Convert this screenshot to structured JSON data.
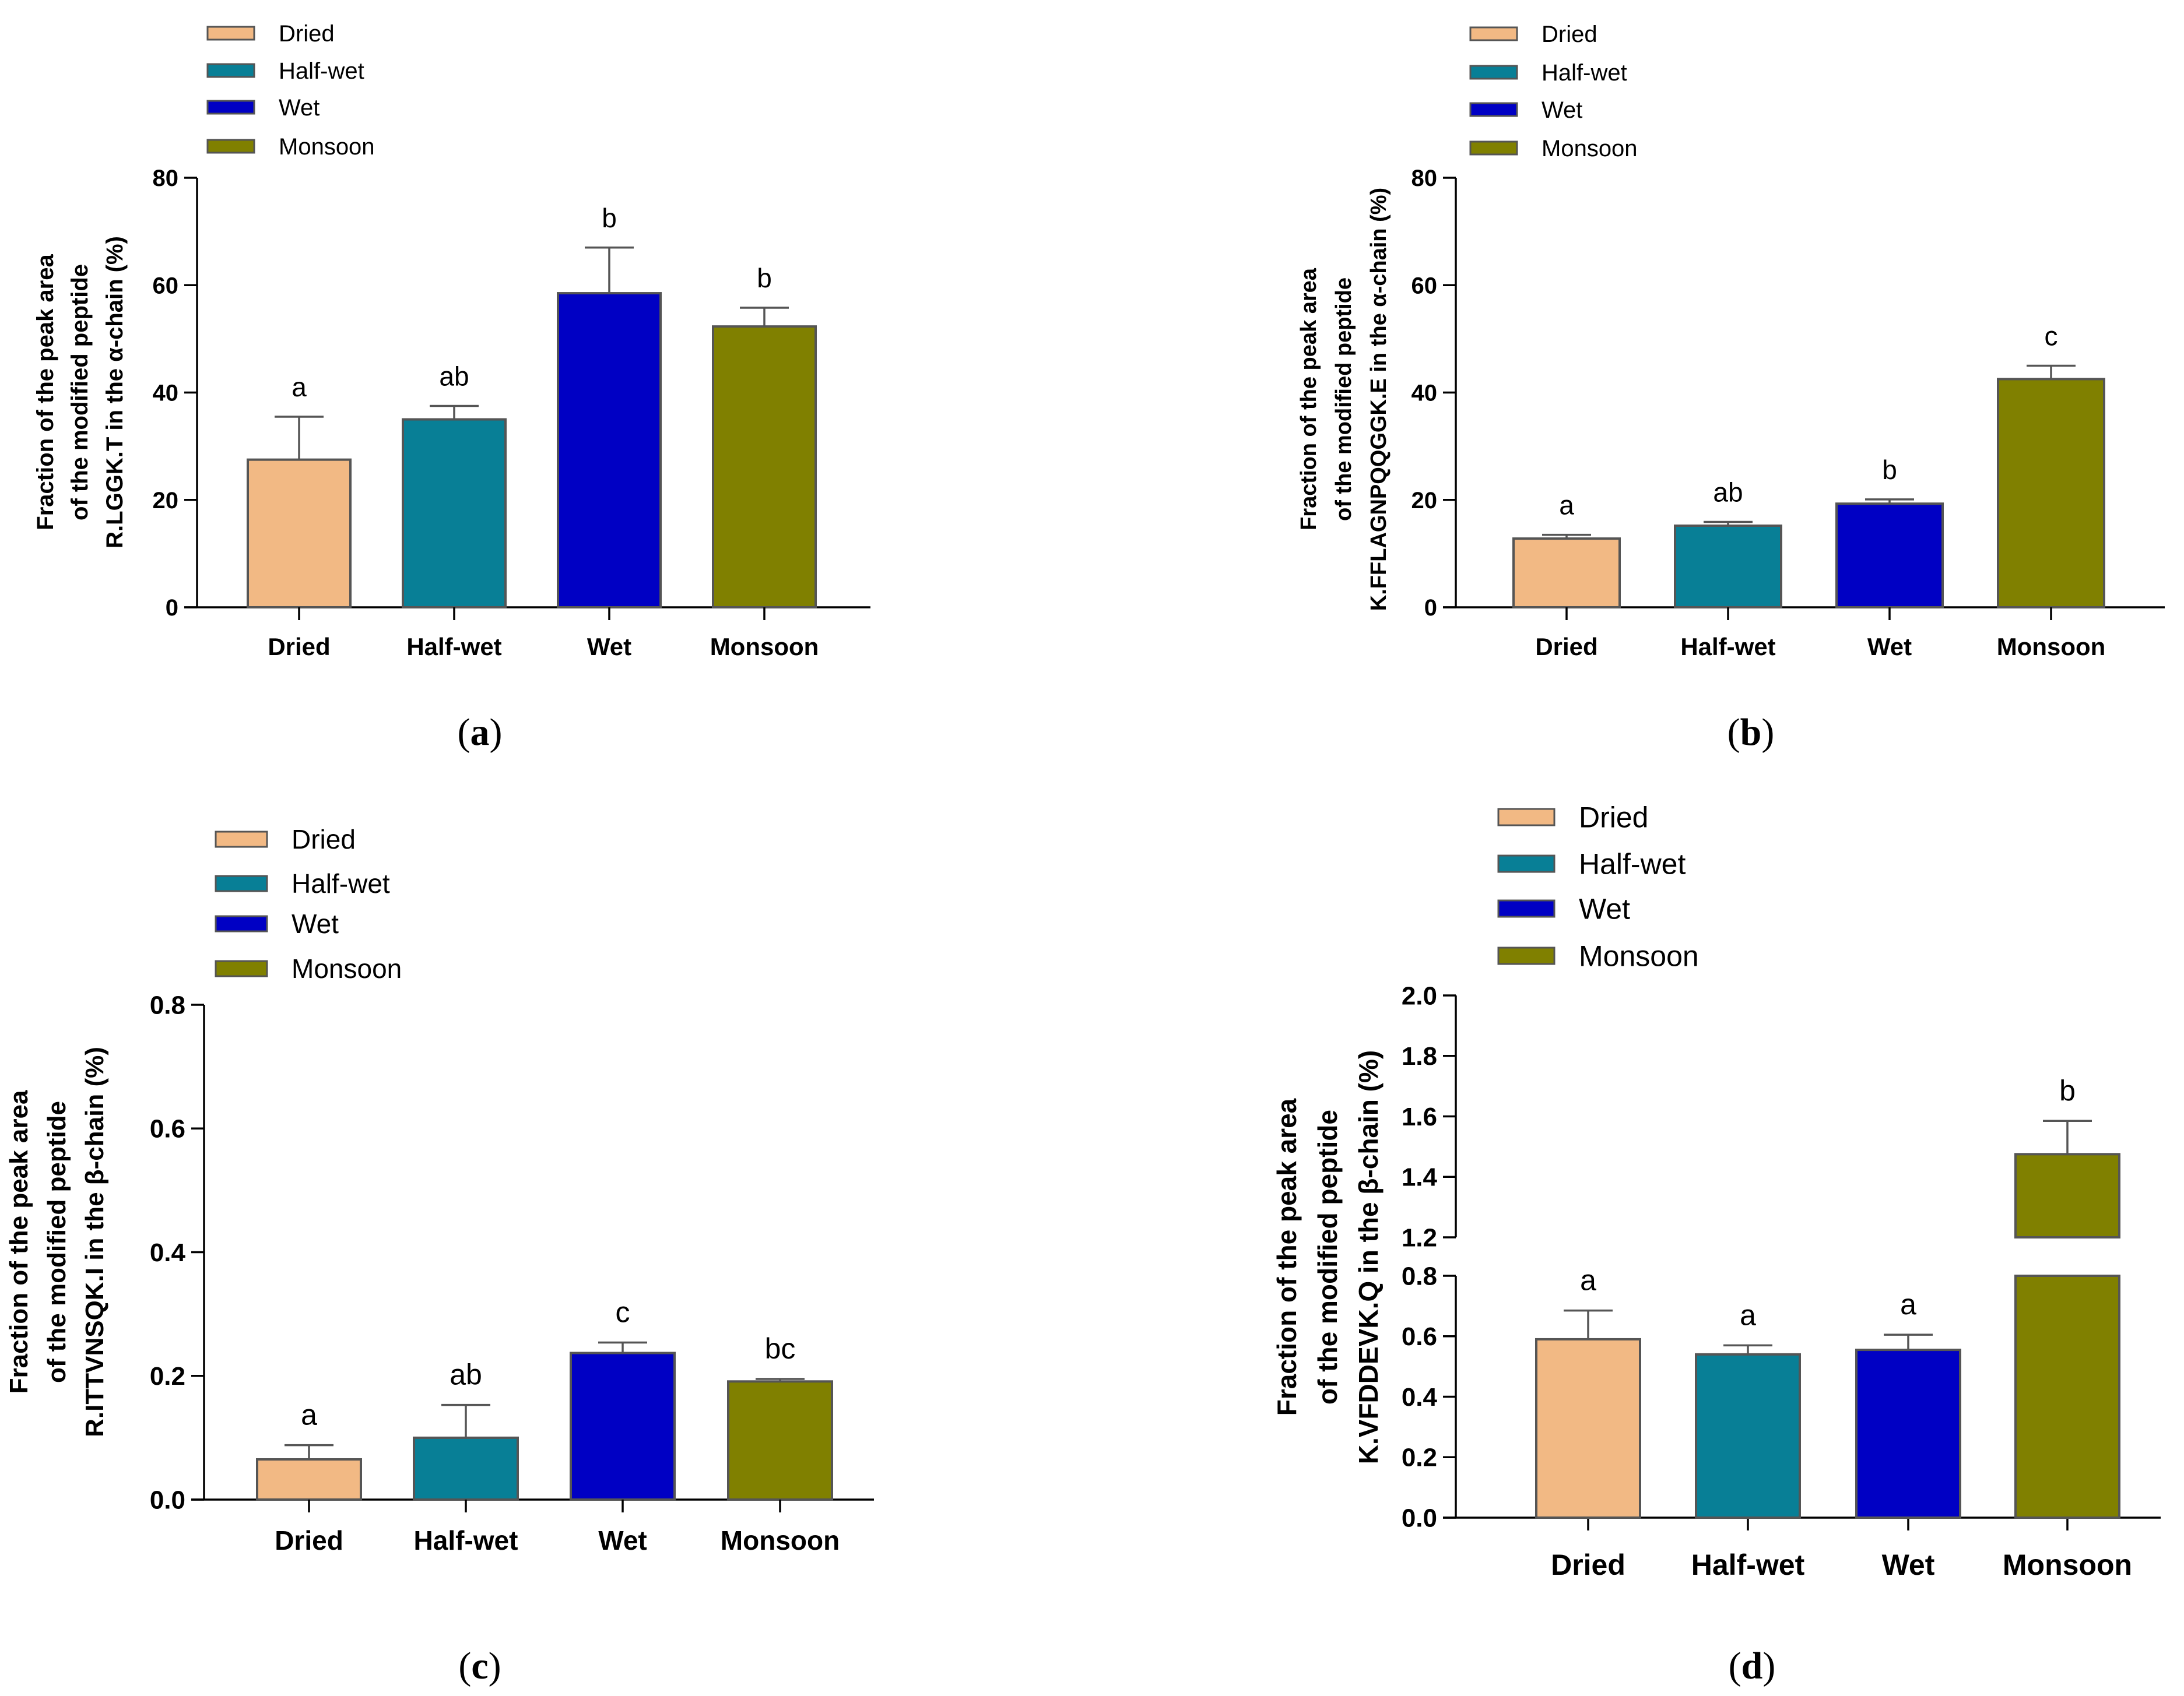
{
  "colors": {
    "Dried": "#F2B984",
    "Half-wet": "#087F96",
    "Wet": "#0000C4",
    "Monsoon": "#808000",
    "bar_edge": "#555555",
    "axis": "#000000"
  },
  "chart_data": [
    {
      "type": "bar",
      "panel": "(a)",
      "panel_letter": "a",
      "categories": [
        "Dried",
        "Half-wet",
        "Wet",
        "Monsoon"
      ],
      "values": [
        27.5,
        35.0,
        58.5,
        52.3
      ],
      "errors": [
        8.0,
        2.5,
        8.5,
        3.5
      ],
      "significance": [
        "a",
        "ab",
        "b",
        "b"
      ],
      "legend": [
        "Dried",
        "Half-wet",
        "Wet",
        "Monsoon"
      ],
      "ylabel_lines": [
        "Fraction of the peak area",
        "of the modified peptide",
        "R.LGGK.T in the α-chain (%)"
      ],
      "ylim": [
        0,
        80
      ],
      "yticks": [
        0,
        20,
        40,
        60,
        80
      ],
      "ytick_labels": [
        "0",
        "20",
        "40",
        "60",
        "80"
      ]
    },
    {
      "type": "bar",
      "panel": "(b)",
      "panel_letter": "b",
      "categories": [
        "Dried",
        "Half-wet",
        "Wet",
        "Monsoon"
      ],
      "values": [
        12.8,
        15.2,
        19.3,
        42.5
      ],
      "errors": [
        0.7,
        0.7,
        0.8,
        2.5
      ],
      "significance": [
        "a",
        "ab",
        "b",
        "c"
      ],
      "legend": [
        "Dried",
        "Half-wet",
        "Wet",
        "Monsoon"
      ],
      "ylabel_lines": [
        "Fraction of the peak area",
        "of the modified peptide",
        "K.FFLAGNPQQGGK.E in the α-chain (%)"
      ],
      "ylim": [
        0,
        80
      ],
      "yticks": [
        0,
        20,
        40,
        60,
        80
      ],
      "ytick_labels": [
        "0",
        "20",
        "40",
        "60",
        "80"
      ]
    },
    {
      "type": "bar",
      "panel": "(c)",
      "panel_letter": "c",
      "categories": [
        "Dried",
        "Half-wet",
        "Wet",
        "Monsoon"
      ],
      "values": [
        0.065,
        0.1,
        0.237,
        0.191
      ],
      "errors": [
        0.023,
        0.053,
        0.017,
        0.004
      ],
      "significance": [
        "a",
        "ab",
        "c",
        "bc"
      ],
      "legend": [
        "Dried",
        "Half-wet",
        "Wet",
        "Monsoon"
      ],
      "ylabel_lines": [
        "Fraction of the peak area",
        "of the modified peptide",
        "R.ITTVNSQK.I in the β-chain (%)"
      ],
      "ylim": [
        0,
        0.8
      ],
      "yticks": [
        0,
        0.2,
        0.4,
        0.6,
        0.8
      ],
      "ytick_labels": [
        "0.0",
        "0.2",
        "0.4",
        "0.6",
        "0.8"
      ]
    },
    {
      "type": "bar",
      "panel": "(d)",
      "panel_letter": "d",
      "categories": [
        "Dried",
        "Half-wet",
        "Wet",
        "Monsoon"
      ],
      "values": [
        0.59,
        0.54,
        0.555,
        1.475
      ],
      "errors": [
        0.095,
        0.03,
        0.05,
        0.11
      ],
      "significance": [
        "a",
        "a",
        "a",
        "b"
      ],
      "legend": [
        "Dried",
        "Half-wet",
        "Wet",
        "Monsoon"
      ],
      "ylabel_lines": [
        "Fraction of the peak area",
        "of the modified peptide",
        "K.VFDDEVK.Q in the β-chain (%)"
      ],
      "broken_axis": {
        "lower_range": [
          0,
          0.8
        ],
        "upper_range": [
          1.2,
          2.0
        ],
        "lower_ticks": [
          0,
          0.2,
          0.4,
          0.6,
          0.8
        ],
        "lower_tick_labels": [
          "0.0",
          "0.2",
          "0.4",
          "0.6",
          "0.8"
        ],
        "upper_ticks": [
          1.2,
          1.4,
          1.6,
          1.8,
          2.0
        ],
        "upper_tick_labels": [
          "1.2",
          "1.4",
          "1.6",
          "1.8",
          "2.0"
        ]
      }
    }
  ]
}
